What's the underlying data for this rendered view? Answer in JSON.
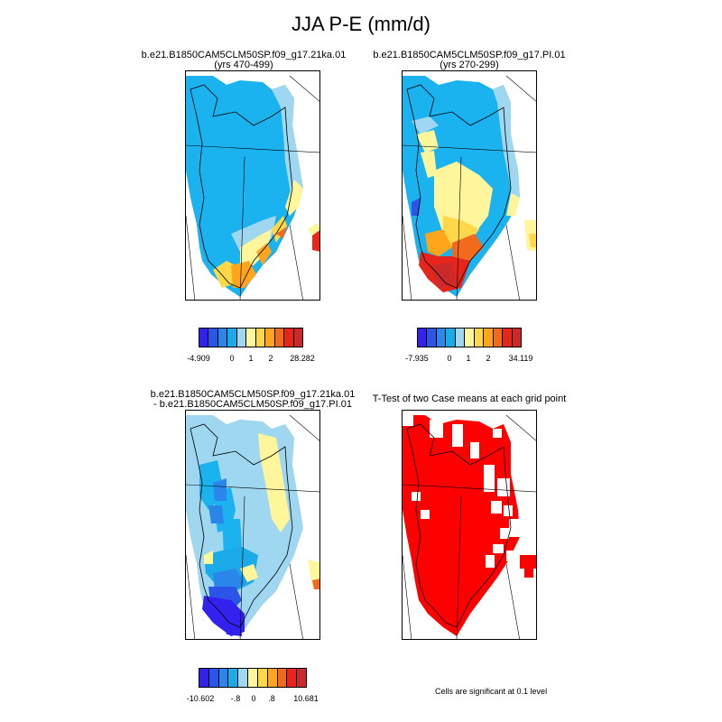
{
  "main_title": "JJA P-E (mm/d)",
  "colors": {
    "palette": [
      "#3322ee",
      "#2a55e8",
      "#2a86e8",
      "#1aabe8",
      "#9fd6f0",
      "#fff59a",
      "#ffd84a",
      "#ffa51c",
      "#f26a1b",
      "#e8251a",
      "#cc2a2a"
    ],
    "sig_fill": "#ff0000",
    "coast": "#000000"
  },
  "panels": [
    {
      "id": "case1",
      "title_line1": "b.e21.B1850CAM5CLM50SP.f09_g17.21ka.01",
      "title_line2": "(yrs 470-499)",
      "legend": {
        "labels": [
          "-4.909",
          "0",
          "1",
          "2",
          "28.282"
        ]
      }
    },
    {
      "id": "case2",
      "title_line1": "b.e21.B1850CAM5CLM50SP.f09_g17.PI.01",
      "title_line2": "(yrs 270-299)",
      "legend": {
        "labels": [
          "-7.935",
          "0",
          "1",
          "2",
          "34.119"
        ]
      }
    },
    {
      "id": "diff",
      "title_line1": "b.e21.B1850CAM5CLM50SP.f09_g17.21ka.01",
      "title_line2": "- b.e21.B1850CAM5CLM50SP.f09_g17.PI.01",
      "legend": {
        "labels": [
          "-10.602",
          "-.8",
          "0",
          ".8",
          "10.681"
        ]
      }
    },
    {
      "id": "ttest",
      "title_line1": "T-Test of two Case means at each grid point",
      "title_line2": "",
      "note": "Cells are significant at 0.1 level"
    }
  ]
}
